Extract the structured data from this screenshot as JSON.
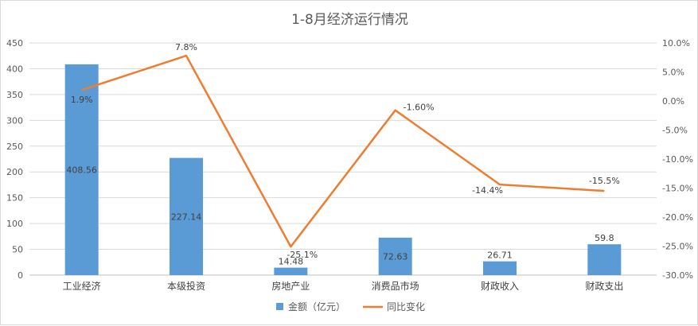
{
  "chart_data": {
    "type": "bar",
    "title": "1-8月经济运行情况",
    "categories": [
      "工业经济",
      "本级投资",
      "房地产业",
      "消费品市场",
      "财政收入",
      "财政支出"
    ],
    "series": [
      {
        "name": "金额（亿元）",
        "type": "bar",
        "axis": "left",
        "values": [
          408.56,
          227.14,
          14.48,
          72.63,
          26.71,
          59.8
        ],
        "labels": [
          "408.56",
          "227.14",
          "14.48",
          "72.63",
          "26.71",
          "59.8"
        ]
      },
      {
        "name": "同比变化",
        "type": "line",
        "axis": "right",
        "values": [
          1.9,
          7.8,
          -25.1,
          -1.6,
          -14.4,
          -15.5
        ],
        "labels": [
          "1.9%",
          "7.8%",
          "-25.1%",
          "-1.60%",
          "-14.4%",
          "-15.5%"
        ]
      }
    ],
    "y_left": {
      "min": 0,
      "max": 450,
      "ticks": [
        0,
        50,
        100,
        150,
        200,
        250,
        300,
        350,
        400,
        450
      ],
      "tick_labels": [
        "0",
        "50",
        "100",
        "150",
        "200",
        "250",
        "300",
        "350",
        "400",
        "450"
      ]
    },
    "y_right": {
      "min": -30,
      "max": 10,
      "ticks": [
        10,
        5,
        0,
        -5,
        -10,
        -15,
        -20,
        -25,
        -30
      ],
      "tick_labels": [
        "10.0%",
        "5.0%",
        "0.0%",
        "-5.0%",
        "-10.0%",
        "-15.0%",
        "-20.0%",
        "-25.0%",
        "-30.0%"
      ]
    },
    "grid": true,
    "legend_position": "bottom",
    "colors": {
      "bar": "#5b9bd5",
      "line": "#ed7d31",
      "grid": "#d9d9d9",
      "axis": "#bfbfbf"
    }
  }
}
